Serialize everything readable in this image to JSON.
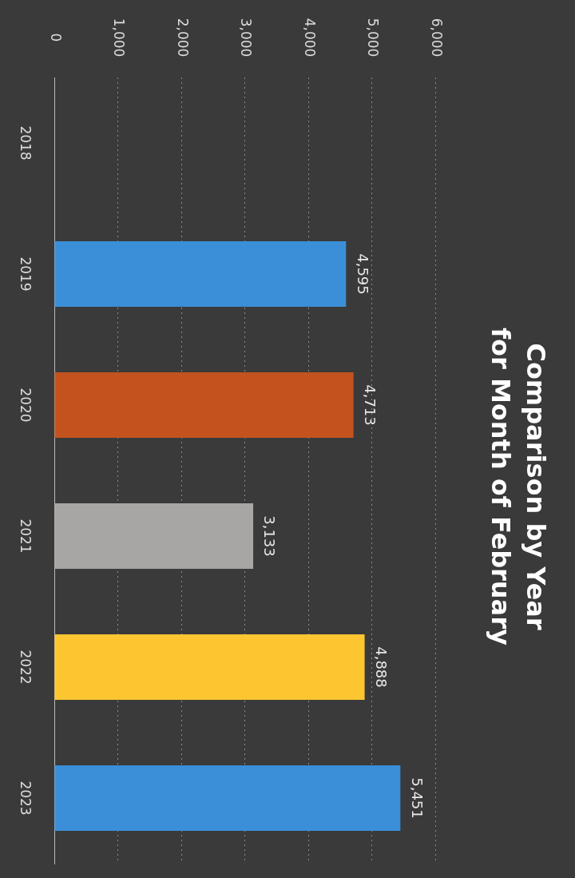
{
  "chart_data": {
    "type": "bar",
    "orientation": "horizontal",
    "title": [
      "Comparison by Year",
      "for Month of February"
    ],
    "categories": [
      "2018",
      "2019",
      "2020",
      "2021",
      "2022",
      "2023"
    ],
    "values": [
      null,
      4595,
      4713,
      3133,
      4888,
      5451
    ],
    "value_labels": [
      null,
      "4,595",
      "4,713",
      "3,133",
      "4,888",
      "5,451"
    ],
    "colors": [
      "#3b8fd8",
      "#3b8fd8",
      "#c4521f",
      "#a8a5a5",
      "#fdc631",
      "#3b8fd8"
    ],
    "xlim": [
      0,
      6000
    ],
    "xticks": [
      0,
      {
        "value": 1000,
        "label": "1,000"
      },
      {
        "value": 2000,
        "label": "2,000"
      },
      {
        "value": 3000,
        "label": "3,000"
      },
      {
        "value": 4000,
        "label": "4,000"
      },
      {
        "value": 5000,
        "label": "5,000"
      },
      {
        "value": 6000,
        "label": "6,000"
      }
    ],
    "grid": "x",
    "legend": false
  }
}
